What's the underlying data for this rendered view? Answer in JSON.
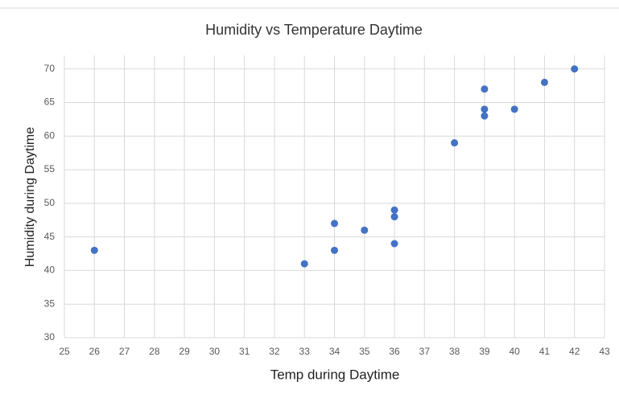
{
  "chart_data": {
    "type": "scatter",
    "title": "Humidity vs Temperature Daytime",
    "x_label": "Temp during Daytime",
    "y_label": "Humidity during Daytime",
    "series": [
      {
        "color": "#4472c4",
        "x": [
          26,
          33,
          34,
          34,
          35,
          36,
          36,
          36,
          38,
          39,
          39,
          39,
          40,
          41,
          42
        ],
        "values": [
          43,
          41,
          47,
          43,
          46,
          49,
          48,
          44,
          59,
          67,
          64,
          63,
          64,
          68,
          70
        ]
      }
    ],
    "xlim": [
      25,
      43
    ],
    "xticks": [
      25,
      26,
      27,
      28,
      29,
      30,
      31,
      32,
      33,
      34,
      35,
      36,
      37,
      38,
      39,
      40,
      41,
      42,
      43
    ],
    "ylim": [
      30,
      72
    ],
    "yticks": [
      30,
      35,
      40,
      45,
      50,
      55,
      60,
      65,
      70
    ],
    "grid": true
  }
}
